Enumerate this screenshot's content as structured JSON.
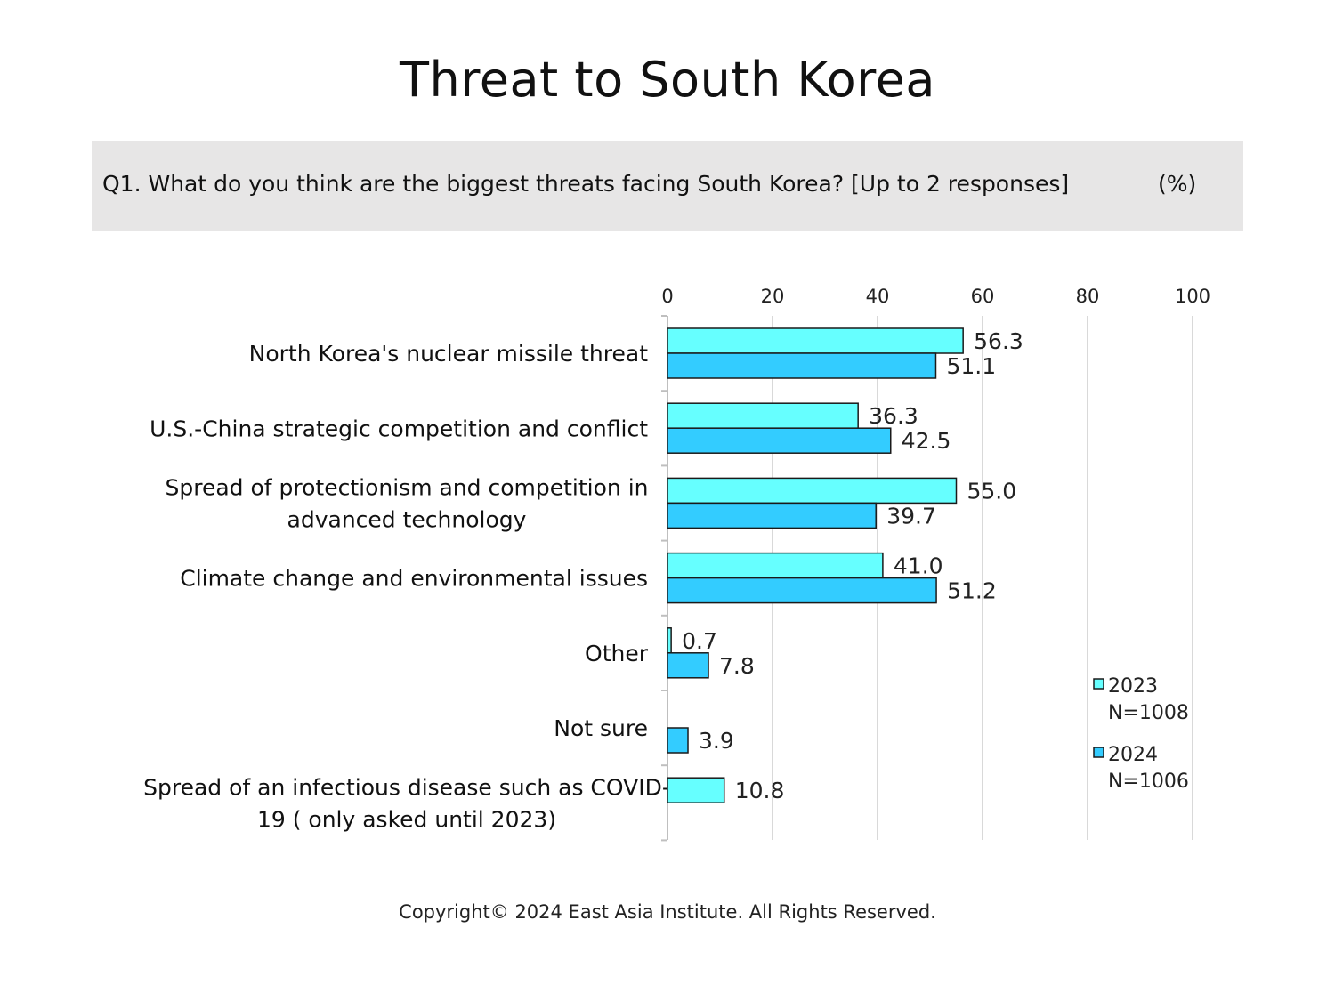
{
  "title": "Threat to South Korea",
  "question": "Q1. What do you think are the biggest threats facing South Korea? [Up to 2 responses]",
  "unit": "(%)",
  "footer": "Copyright© 2024 East Asia Institute. All Rights Reserved.",
  "colors": {
    "series_2023": "#66ffff",
    "series_2024": "#33ccff",
    "gridline": "#d9d9d9",
    "bar_stroke": "#1a1a1a"
  },
  "chart_data": {
    "type": "bar",
    "orientation": "horizontal",
    "xlim": [
      0,
      100
    ],
    "xticks": [
      0,
      20,
      40,
      60,
      80,
      100
    ],
    "grid": true,
    "legend_position": "right",
    "categories": [
      [
        "North Korea's nuclear missile threat"
      ],
      [
        "U.S.-China strategic competition and conflict"
      ],
      [
        "Spread of protectionism and competition in",
        "advanced technology"
      ],
      [
        "Climate change and environmental issues"
      ],
      [
        "Other"
      ],
      [
        "Not sure"
      ],
      [
        "Spread of an infectious disease such as COVID-",
        "19 ( only asked until 2023)"
      ]
    ],
    "series": [
      {
        "name": "2023",
        "note": "N=1008",
        "values": [
          56.3,
          36.3,
          55.0,
          41.0,
          0.7,
          null,
          10.8
        ]
      },
      {
        "name": "2024",
        "note": "N=1006",
        "values": [
          51.1,
          42.5,
          39.7,
          51.2,
          7.8,
          3.9,
          null
        ]
      }
    ]
  }
}
